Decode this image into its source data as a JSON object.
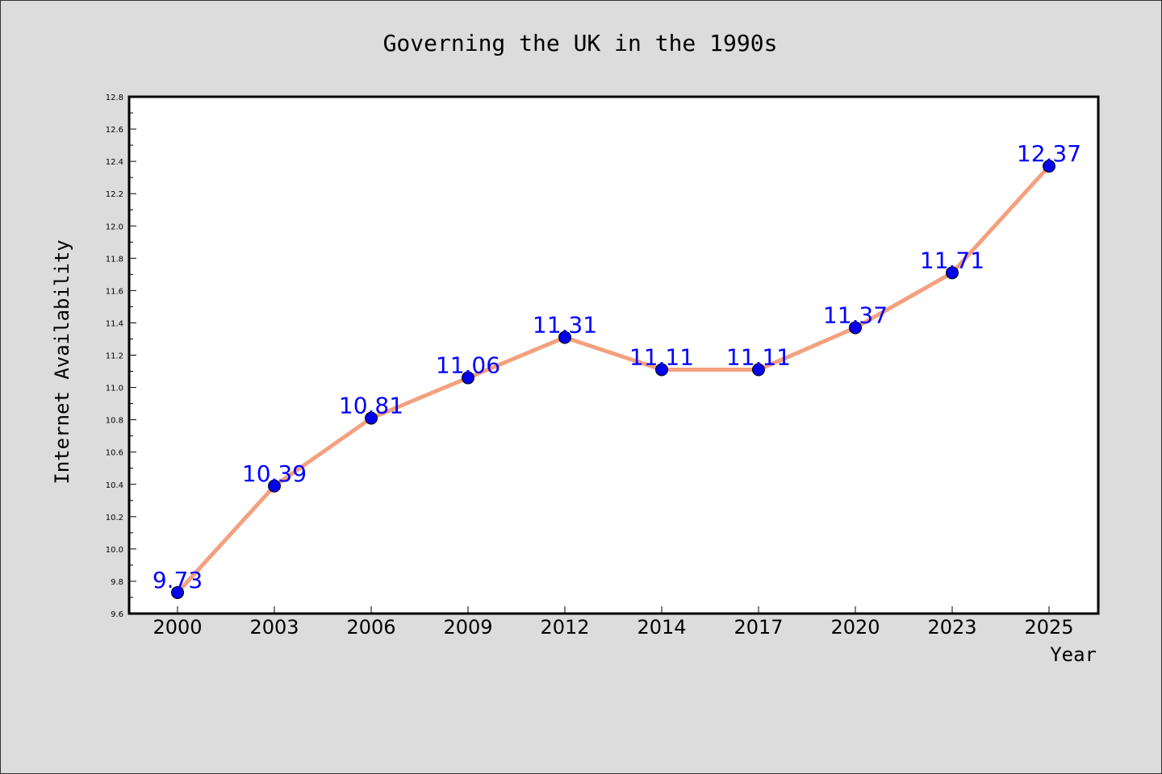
{
  "chart_data": {
    "type": "line",
    "title": "Governing the UK in the 1990s",
    "xlabel": "Year",
    "ylabel": "Internet Availability",
    "categories": [
      "2000",
      "2003",
      "2006",
      "2009",
      "2012",
      "2014",
      "2017",
      "2020",
      "2023",
      "2025"
    ],
    "series": [
      {
        "values": [
          9.73,
          10.39,
          10.81,
          11.06,
          11.31,
          11.11,
          11.11,
          11.37,
          11.71,
          12.37
        ]
      }
    ],
    "data_labels": [
      "9.73",
      "10.39",
      "10.81",
      "11.06",
      "11.31",
      "11.11",
      "11.11",
      "11.37",
      "11.71",
      "12.37"
    ],
    "ylim": [
      9.6,
      12.8
    ],
    "yticks": [
      "9.6",
      "9.8",
      "10.0",
      "10.2",
      "10.4",
      "10.6",
      "10.8",
      "11.0",
      "11.2",
      "11.4",
      "11.6",
      "11.8",
      "12.0",
      "12.2",
      "12.4",
      "12.6",
      "12.8"
    ],
    "grid": false,
    "legend": "none",
    "colors": {
      "line": "#f4a07e",
      "marker": "#0000ee",
      "label": "#0000ff",
      "background": "#dcdcdc",
      "plot_background": "#ffffff"
    }
  }
}
